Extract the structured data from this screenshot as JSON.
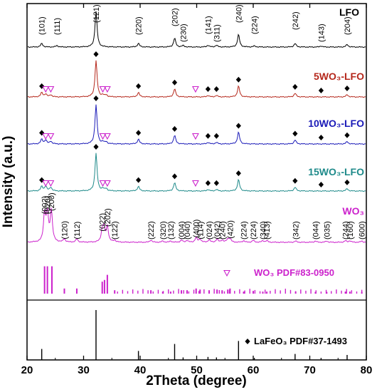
{
  "chart_data": {
    "type": "line",
    "xlabel": "2Theta (degree)",
    "ylabel": "Intensity (a.u.)",
    "xlim": [
      20,
      80
    ],
    "xticks": [
      20,
      30,
      40,
      50,
      60,
      70,
      80
    ],
    "grid": false,
    "series": [
      {
        "name": "LFO",
        "color": "#000000",
        "peaks": [
          [
            22.6,
            0.1
          ],
          [
            25.3,
            0.04
          ],
          [
            32.2,
            1.0
          ],
          [
            39.7,
            0.1
          ],
          [
            46.1,
            0.25
          ],
          [
            47.6,
            0.04
          ],
          [
            52.0,
            0.05
          ],
          [
            53.5,
            0.05
          ],
          [
            57.4,
            0.35
          ],
          [
            60.2,
            0.03
          ],
          [
            67.4,
            0.1
          ],
          [
            72.0,
            0.03
          ],
          [
            76.6,
            0.07
          ]
        ],
        "hkl": [
          {
            "x": 22.6,
            "label": "(101)"
          },
          {
            "x": 25.3,
            "label": "(111)"
          },
          {
            "x": 32.2,
            "label": "(121)"
          },
          {
            "x": 39.7,
            "label": "(220)"
          },
          {
            "x": 46.1,
            "label": "(202)"
          },
          {
            "x": 47.6,
            "label": "(230)"
          },
          {
            "x": 52.0,
            "label": "(141)"
          },
          {
            "x": 53.5,
            "label": "(311)"
          },
          {
            "x": 57.4,
            "label": "(240)"
          },
          {
            "x": 60.2,
            "label": "(224)"
          },
          {
            "x": 67.4,
            "label": "(242)"
          },
          {
            "x": 72.0,
            "label": "(143)"
          },
          {
            "x": 76.6,
            "label": "(204)"
          }
        ]
      },
      {
        "name": "5WO3-LFO",
        "color": "#b5271b",
        "peaks": [
          [
            22.6,
            0.12
          ],
          [
            23.3,
            0.08
          ],
          [
            24.2,
            0.06
          ],
          [
            32.2,
            1.0
          ],
          [
            33.4,
            0.05
          ],
          [
            34.0,
            0.05
          ],
          [
            39.7,
            0.12
          ],
          [
            46.1,
            0.22
          ],
          [
            52.0,
            0.04
          ],
          [
            53.5,
            0.04
          ],
          [
            57.4,
            0.3
          ],
          [
            67.4,
            0.1
          ],
          [
            76.6,
            0.06
          ]
        ],
        "markers_phase": [
          22.6,
          32.2,
          39.7,
          46.1,
          52.0,
          53.5,
          57.4,
          67.4,
          72.0,
          76.6
        ],
        "markers_wo3": [
          23.3,
          24.2,
          33.4,
          34.2,
          49.8
        ]
      },
      {
        "name": "10WO3-LFO",
        "color": "#1a1ab8",
        "peaks": [
          [
            22.6,
            0.12
          ],
          [
            23.3,
            0.1
          ],
          [
            24.2,
            0.07
          ],
          [
            32.2,
            1.0
          ],
          [
            33.4,
            0.05
          ],
          [
            34.0,
            0.05
          ],
          [
            39.7,
            0.12
          ],
          [
            46.1,
            0.22
          ],
          [
            52.0,
            0.04
          ],
          [
            53.5,
            0.04
          ],
          [
            57.4,
            0.3
          ],
          [
            67.4,
            0.1
          ],
          [
            76.6,
            0.06
          ]
        ],
        "markers_phase": [
          22.6,
          32.2,
          39.7,
          46.1,
          52.0,
          53.5,
          57.4,
          67.4,
          72.0,
          76.6
        ],
        "markers_wo3": [
          23.3,
          24.2,
          33.4,
          34.2,
          49.8
        ]
      },
      {
        "name": "15WO3-LFO",
        "color": "#1e8a8a",
        "peaks": [
          [
            22.6,
            0.12
          ],
          [
            23.3,
            0.13
          ],
          [
            24.2,
            0.1
          ],
          [
            32.2,
            1.0
          ],
          [
            33.4,
            0.06
          ],
          [
            34.0,
            0.06
          ],
          [
            39.7,
            0.12
          ],
          [
            46.1,
            0.22
          ],
          [
            52.0,
            0.04
          ],
          [
            53.5,
            0.04
          ],
          [
            57.4,
            0.3
          ],
          [
            67.4,
            0.1
          ],
          [
            76.6,
            0.06
          ]
        ],
        "markers_phase": [
          22.6,
          32.2,
          39.7,
          46.1,
          52.0,
          53.5,
          57.4,
          67.4,
          72.0,
          76.6
        ],
        "markers_wo3": [
          23.3,
          24.2,
          33.4,
          34.2,
          49.8
        ]
      },
      {
        "name": "WO3",
        "color": "#cc22cc",
        "peaks": [
          [
            23.1,
            0.9
          ],
          [
            23.6,
            0.9
          ],
          [
            24.3,
            1.0
          ],
          [
            26.6,
            0.1
          ],
          [
            28.8,
            0.1
          ],
          [
            33.3,
            0.35
          ],
          [
            33.6,
            0.4
          ],
          [
            34.2,
            0.5
          ],
          [
            35.5,
            0.06
          ],
          [
            41.9,
            0.07
          ],
          [
            44.0,
            0.04
          ],
          [
            45.4,
            0.04
          ],
          [
            47.3,
            0.07
          ],
          [
            48.3,
            0.06
          ],
          [
            49.9,
            0.15
          ],
          [
            50.6,
            0.1
          ],
          [
            52.2,
            0.08
          ],
          [
            53.6,
            0.1
          ],
          [
            54.5,
            0.07
          ],
          [
            55.5,
            0.1
          ],
          [
            55.9,
            0.12
          ],
          [
            58.3,
            0.05
          ],
          [
            60.0,
            0.06
          ],
          [
            61.7,
            0.05
          ],
          [
            62.4,
            0.05
          ],
          [
            67.5,
            0.04
          ],
          [
            71.0,
            0.04
          ],
          [
            73.0,
            0.04
          ],
          [
            76.3,
            0.05
          ],
          [
            77.1,
            0.05
          ],
          [
            79.2,
            0.04
          ]
        ],
        "hkl": [
          {
            "x": 23.1,
            "label": "(002)"
          },
          {
            "x": 23.6,
            "label": "(020)"
          },
          {
            "x": 24.3,
            "label": "(200)"
          },
          {
            "x": 26.6,
            "label": "(120)"
          },
          {
            "x": 28.8,
            "label": "(112)"
          },
          {
            "x": 33.3,
            "label": "(022)"
          },
          {
            "x": 34.2,
            "label": "(202)"
          },
          {
            "x": 35.5,
            "label": "(122)"
          },
          {
            "x": 41.9,
            "label": "(222)"
          },
          {
            "x": 44.0,
            "label": "(320)"
          },
          {
            "x": 45.4,
            "label": "(132)"
          },
          {
            "x": 47.3,
            "label": "(004)"
          },
          {
            "x": 48.3,
            "label": "(040)"
          },
          {
            "x": 49.9,
            "label": "(400)"
          },
          {
            "x": 50.6,
            "label": "(114)"
          },
          {
            "x": 52.2,
            "label": "(024)"
          },
          {
            "x": 53.6,
            "label": "(042)"
          },
          {
            "x": 54.5,
            "label": "(240)"
          },
          {
            "x": 55.9,
            "label": "(420)"
          },
          {
            "x": 58.3,
            "label": "(224)"
          },
          {
            "x": 60.0,
            "label": "(224)"
          },
          {
            "x": 61.7,
            "label": "(340)"
          },
          {
            "x": 62.4,
            "label": "(413)"
          },
          {
            "x": 67.5,
            "label": "(342)"
          },
          {
            "x": 71.0,
            "label": "(044)"
          },
          {
            "x": 73.0,
            "label": "(035)"
          },
          {
            "x": 76.3,
            "label": "(244)"
          },
          {
            "x": 77.1,
            "label": "(160)"
          },
          {
            "x": 79.2,
            "label": "(600)"
          }
        ]
      }
    ],
    "references": [
      {
        "name": "WO3 PDF#83-0950",
        "marker": "triangle-down",
        "color": "#cc22cc",
        "lines": [
          [
            23.1,
            0.8
          ],
          [
            23.6,
            0.8
          ],
          [
            24.4,
            0.8
          ],
          [
            26.6,
            0.15
          ],
          [
            28.8,
            0.15
          ],
          [
            33.3,
            0.35
          ],
          [
            33.7,
            0.4
          ],
          [
            34.2,
            0.55
          ],
          [
            35.5,
            0.1
          ],
          [
            41.9,
            0.1
          ],
          [
            44.0,
            0.06
          ],
          [
            45.4,
            0.06
          ],
          [
            47.3,
            0.1
          ],
          [
            48.3,
            0.1
          ],
          [
            49.9,
            0.15
          ],
          [
            50.6,
            0.12
          ],
          [
            52.2,
            0.1
          ],
          [
            53.6,
            0.12
          ],
          [
            54.5,
            0.1
          ],
          [
            55.5,
            0.12
          ],
          [
            55.9,
            0.15
          ],
          [
            58.3,
            0.06
          ],
          [
            60.0,
            0.08
          ],
          [
            61.7,
            0.06
          ],
          [
            62.4,
            0.06
          ],
          [
            67.5,
            0.06
          ],
          [
            71.0,
            0.05
          ],
          [
            73.0,
            0.05
          ],
          [
            76.3,
            0.06
          ],
          [
            77.1,
            0.06
          ],
          [
            79.2,
            0.05
          ]
        ]
      },
      {
        "name": "LaFeO3 PDF#37-1493",
        "marker": "diamond",
        "color": "#000000",
        "lines": [
          [
            22.6,
            0.22
          ],
          [
            32.2,
            1.0
          ],
          [
            39.7,
            0.18
          ],
          [
            46.1,
            0.32
          ],
          [
            47.6,
            0.05
          ],
          [
            52.0,
            0.06
          ],
          [
            53.5,
            0.05
          ],
          [
            57.4,
            0.38
          ],
          [
            60.2,
            0.04
          ],
          [
            67.4,
            0.12
          ],
          [
            72.0,
            0.04
          ],
          [
            76.6,
            0.1
          ]
        ]
      }
    ]
  }
}
